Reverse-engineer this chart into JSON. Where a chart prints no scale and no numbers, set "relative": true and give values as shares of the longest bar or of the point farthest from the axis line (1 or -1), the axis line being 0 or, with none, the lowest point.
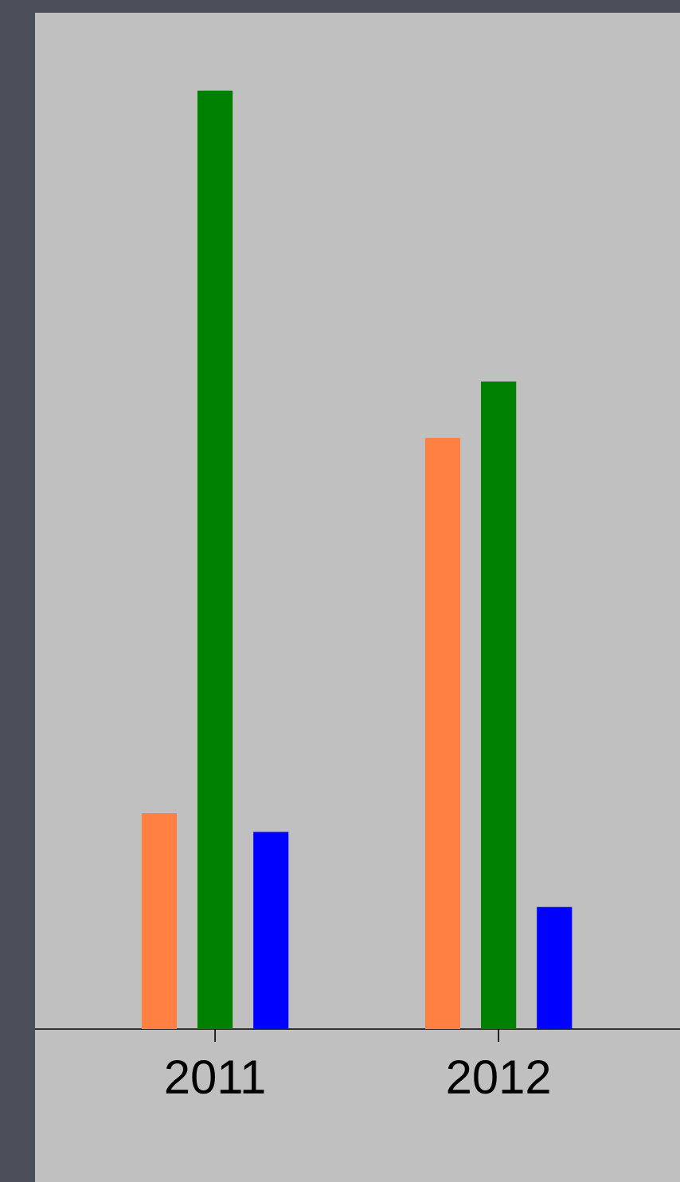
{
  "chart_data": {
    "type": "bar",
    "relative": true,
    "categories": [
      "2011",
      "2012"
    ],
    "series": [
      {
        "color": "#ff8040",
        "values": [
          0.23,
          0.63
        ]
      },
      {
        "color": "#008000",
        "values": [
          1,
          0.69
        ]
      },
      {
        "color": "#0000ff",
        "values": [
          0.21,
          0.13
        ]
      }
    ]
  }
}
